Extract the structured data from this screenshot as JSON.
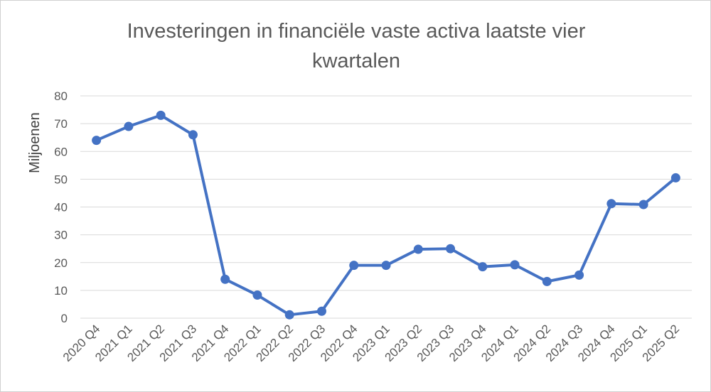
{
  "chart_data": {
    "type": "line",
    "title_lines": [
      "Investeringen in financiële vaste activa laatste vier",
      "kwartalen"
    ],
    "xlabel": "",
    "ylabel": "Miljoenen",
    "ylim": [
      0,
      80
    ],
    "yticks": [
      0,
      10,
      20,
      30,
      40,
      50,
      60,
      70,
      80
    ],
    "grid": true,
    "legend": "none",
    "categories": [
      "2020 Q4",
      "2021 Q1",
      "2021 Q2",
      "2021 Q3",
      "2021 Q4",
      "2022 Q1",
      "2022 Q2",
      "2022 Q3",
      "2022 Q4",
      "2023 Q1",
      "2023 Q2",
      "2023 Q3",
      "2023 Q4",
      "2024 Q1",
      "2024 Q2",
      "2024 Q3",
      "2024 Q4",
      "2025 Q1",
      "2025 Q2"
    ],
    "series": [
      {
        "values": [
          64,
          69,
          73,
          66,
          14,
          8.3,
          1.2,
          2.5,
          19,
          19,
          24.8,
          25,
          18.5,
          19.2,
          13.2,
          15.5,
          41.2,
          40.9,
          50.5
        ],
        "color": "#4472c4"
      }
    ]
  }
}
